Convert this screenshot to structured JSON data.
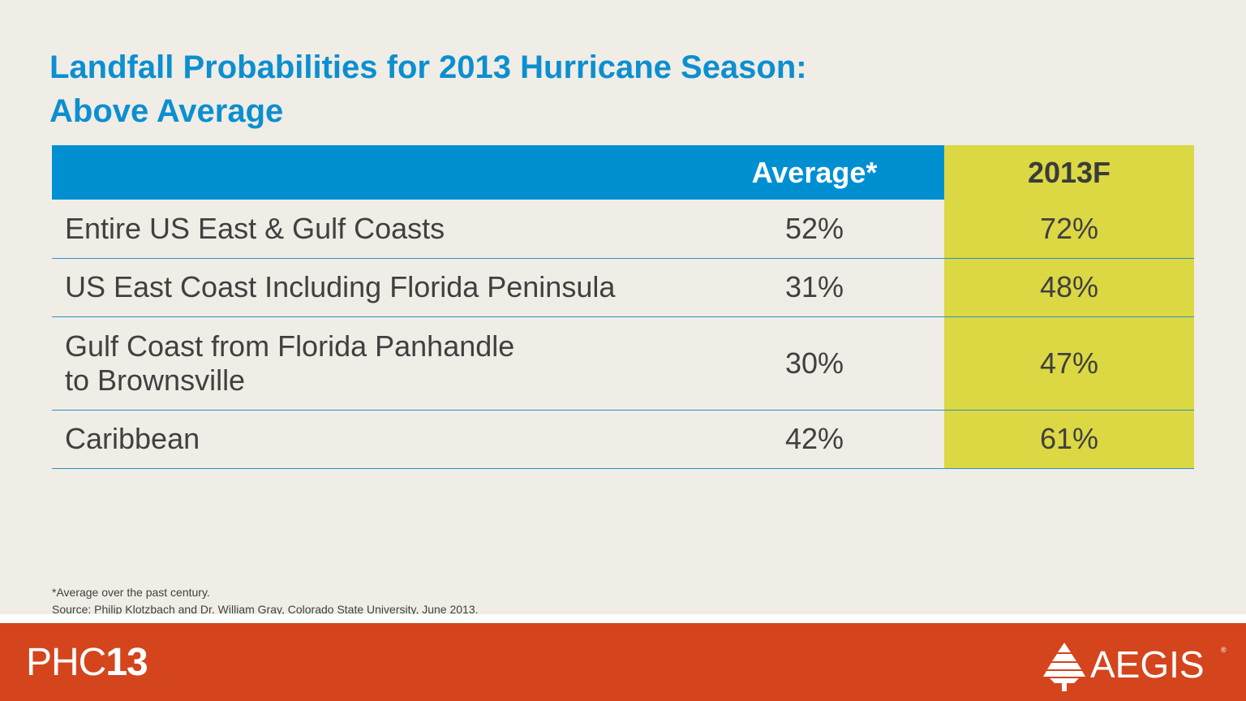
{
  "title": {
    "line1": "Landfall Probabilities for 2013 Hurricane Season:",
    "line2": "Above Average"
  },
  "table": {
    "headers": [
      "",
      "Average*",
      "2013F"
    ],
    "rows": [
      {
        "label_lines": [
          "Entire US East & Gulf Coasts"
        ],
        "average": "52%",
        "forecast": "72%"
      },
      {
        "label_lines": [
          "US East Coast Including Florida Peninsula"
        ],
        "average": "31%",
        "forecast": "48%"
      },
      {
        "label_lines": [
          "Gulf Coast from Florida Panhandle",
          "to Brownsville"
        ],
        "average": "30%",
        "forecast": "47%"
      },
      {
        "label_lines": [
          "Caribbean"
        ],
        "average": "42%",
        "forecast": "61%"
      }
    ]
  },
  "notes": {
    "footnote": "*Average over the past century.",
    "source": "Source: Philip Klotzbach and Dr. William Gray, Colorado State University, June 2013."
  },
  "footer": {
    "event_prefix": "PHC",
    "event_year": "13",
    "brand_name": "AEGIS",
    "brand_reg": "®",
    "brand_icon": "aegis-triangle-logo-icon"
  },
  "colors": {
    "title": "#0c8fd0",
    "header_blue": "#0090d2",
    "forecast_yellow": "#dbd843",
    "footer_orange": "#d4451d",
    "background": "#efede6"
  }
}
